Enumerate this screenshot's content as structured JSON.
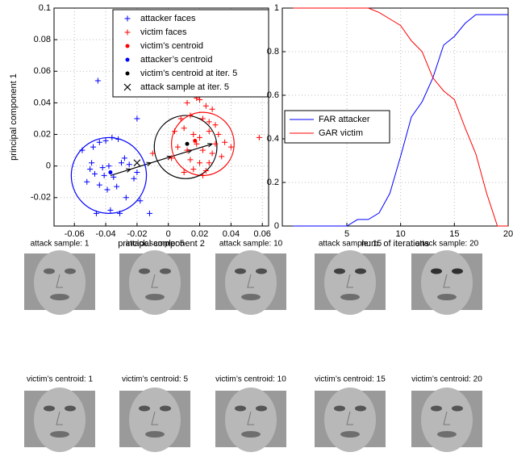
{
  "chart_data": [
    {
      "type": "scatter",
      "xlabel": "principal component 2",
      "ylabel": "principal component 1",
      "xlim": [
        -0.073,
        0.064
      ],
      "ylim": [
        -0.038,
        0.1
      ],
      "xticks": [
        -0.06,
        -0.04,
        -0.02,
        0,
        0.02,
        0.04,
        0.06
      ],
      "yticks": [
        -0.02,
        0,
        0.02,
        0.04,
        0.06,
        0.08,
        0.1
      ],
      "grid": true,
      "legend": "upper right",
      "series": [
        {
          "name": "attacker faces",
          "color": "#0000ff",
          "marker": "+",
          "x": [
            -0.045,
            -0.055,
            -0.048,
            -0.044,
            -0.04,
            -0.036,
            -0.032,
            -0.05,
            -0.042,
            -0.038,
            -0.03,
            -0.028,
            -0.047,
            -0.041,
            -0.035,
            -0.025,
            -0.02,
            -0.022,
            -0.052,
            -0.044,
            -0.039,
            -0.033,
            -0.027,
            -0.018,
            -0.046,
            -0.037,
            -0.031,
            -0.049,
            -0.02,
            -0.012
          ],
          "values": [
            0.054,
            0.01,
            0.012,
            0.015,
            0.016,
            0.018,
            0.017,
            -0.002,
            -0.001,
            0,
            0.002,
            0.005,
            -0.005,
            -0.006,
            -0.007,
            0.001,
            -0.004,
            -0.008,
            -0.01,
            -0.012,
            -0.015,
            -0.013,
            -0.02,
            -0.022,
            -0.03,
            -0.028,
            -0.03,
            0.002,
            0.03,
            -0.03
          ]
        },
        {
          "name": "victim faces",
          "color": "#ff0000",
          "marker": "+",
          "x": [
            0.012,
            0.018,
            0.02,
            0.024,
            0.028,
            0.008,
            0.014,
            0.022,
            0.026,
            0.03,
            0.004,
            0.01,
            0.016,
            0.02,
            0.026,
            0.032,
            0.036,
            0.006,
            0.012,
            0.018,
            0.022,
            0.028,
            0.034,
            0.04,
            0.058,
            0.002,
            0.014,
            0.02,
            0.026,
            0.01,
            0.016,
            0.022,
            -0.01,
            0.03,
            0.024
          ],
          "values": [
            0.04,
            0.043,
            0.042,
            0.038,
            0.036,
            0.03,
            0.032,
            0.03,
            0.028,
            0.026,
            0.022,
            0.024,
            0.02,
            0.018,
            0.022,
            0.02,
            0.015,
            0.012,
            0.01,
            0.014,
            0.01,
            0.008,
            0.006,
            0.012,
            0.018,
            0.005,
            0.004,
            0.002,
            0.002,
            -0.004,
            -0.002,
            -0.006,
            0.008,
            0.014,
            -0.003
          ]
        },
        {
          "name": "victim’s centroid",
          "color": "#ff0000",
          "marker": ".",
          "x": [
            0.017
          ],
          "values": [
            0.016
          ]
        },
        {
          "name": "attacker’s centroid",
          "color": "#0000ff",
          "marker": ".",
          "x": [
            -0.037
          ],
          "values": [
            -0.004
          ]
        },
        {
          "name": "victim’s centroid at iter. 5",
          "color": "#000000",
          "marker": ".",
          "x": [
            0.012
          ],
          "values": [
            0.014
          ]
        },
        {
          "name": "attack sample at iter. 5",
          "color": "#000000",
          "marker": "x",
          "x": [
            -0.02
          ],
          "values": [
            0.002
          ]
        }
      ],
      "trajectory": {
        "color": "#000000",
        "x": [
          -0.037,
          -0.024,
          -0.011,
          0.002,
          0.015,
          0.028
        ],
        "y": [
          -0.006,
          -0.002,
          0.002,
          0.006,
          0.01,
          0.014
        ]
      },
      "circles": [
        {
          "color": "#0000ff",
          "cx": -0.038,
          "cy": -0.006,
          "r": 0.024
        },
        {
          "color": "#ff0000",
          "cx": 0.022,
          "cy": 0.014,
          "r": 0.02
        },
        {
          "color": "#000000",
          "cx": 0.011,
          "cy": 0.012,
          "r": 0.02
        }
      ]
    },
    {
      "type": "line",
      "xlabel": "num. of iterations",
      "xlim": [
        -1,
        20
      ],
      "ylim": [
        0,
        1
      ],
      "xticks": [
        5,
        10,
        15,
        20
      ],
      "yticks": [
        0,
        0.2,
        0.4,
        0.6,
        0.8,
        1
      ],
      "grid": true,
      "legend": "center left",
      "x": [
        0,
        1,
        2,
        3,
        4,
        5,
        6,
        7,
        8,
        9,
        10,
        11,
        12,
        13,
        14,
        15,
        16,
        17,
        18,
        19,
        20
      ],
      "series": [
        {
          "name": "FAR attacker",
          "color": "#0000ff",
          "values": [
            0,
            0,
            0,
            0,
            0,
            0,
            0.03,
            0.03,
            0.06,
            0.15,
            0.32,
            0.5,
            0.57,
            0.68,
            0.83,
            0.87,
            0.93,
            0.97,
            0.97,
            0.97,
            0.97
          ]
        },
        {
          "name": "GAR victim",
          "color": "#ff0000",
          "values": [
            1,
            1,
            1,
            1,
            1,
            1,
            1,
            1,
            0.98,
            0.95,
            0.92,
            0.85,
            0.8,
            0.68,
            0.62,
            0.58,
            0.45,
            0.33,
            0.15,
            0,
            0
          ]
        }
      ]
    }
  ],
  "images": {
    "attack_samples": [
      "attack sample: 1",
      "attack sample: 5",
      "attack sample: 10",
      "attack sample: 15",
      "attack sample: 20"
    ],
    "victim_centroids": [
      "victim’s centroid: 1",
      "victim’s centroid: 5",
      "victim’s centroid: 10",
      "victim’s centroid: 15",
      "victim’s centroid: 20"
    ]
  }
}
